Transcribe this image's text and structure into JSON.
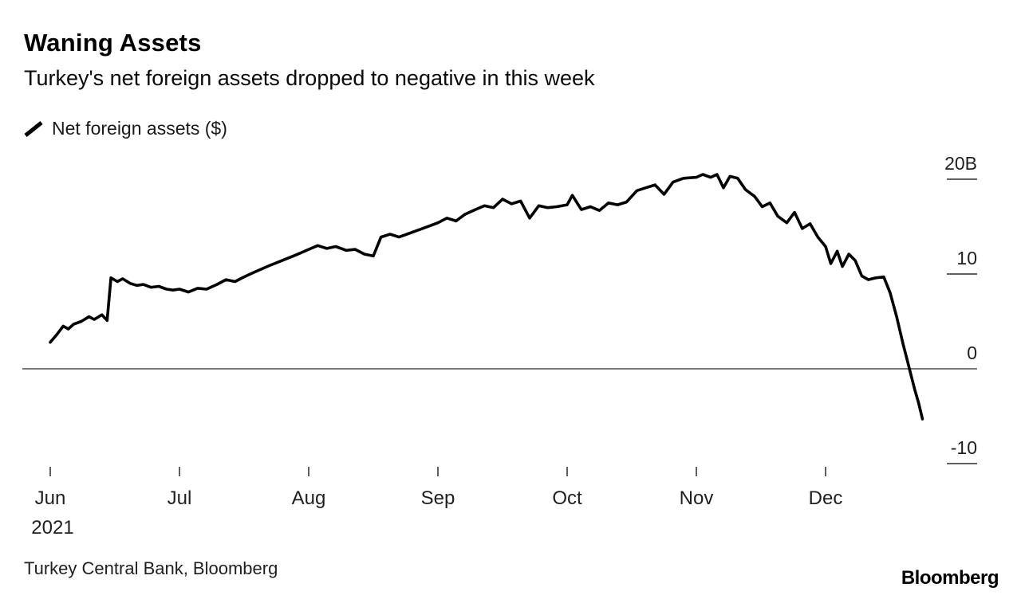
{
  "header": {
    "title": "Waning Assets",
    "subtitle": "Turkey's net foreign assets dropped to negative in this week"
  },
  "legend": {
    "label": "Net foreign assets ($)",
    "swatch_icon": "diagonal-line-swatch",
    "swatch_color": "#000000"
  },
  "chart_data": {
    "type": "line",
    "title": "Waning Assets",
    "subtitle": "Turkey's net foreign assets dropped to negative in this week",
    "x_unit": "months from Jun 2021",
    "y_unit": "billions USD",
    "ylim": [
      -12,
      22
    ],
    "grid": "zero-line-only",
    "legend_position": "top-left",
    "y_axis": {
      "side": "right",
      "ticks": [
        {
          "value": 20,
          "label": "20B"
        },
        {
          "value": 10,
          "label": "10"
        },
        {
          "value": 0,
          "label": "0"
        },
        {
          "value": -10,
          "label": "-10"
        }
      ]
    },
    "x_axis": {
      "ticks": [
        {
          "label": "Jun",
          "position": 0,
          "sub": "2021"
        },
        {
          "label": "Jul",
          "position": 1
        },
        {
          "label": "Aug",
          "position": 2
        },
        {
          "label": "Sep",
          "position": 3
        },
        {
          "label": "Oct",
          "position": 4
        },
        {
          "label": "Nov",
          "position": 5
        },
        {
          "label": "Dec",
          "position": 6
        }
      ]
    },
    "series": [
      {
        "name": "Net foreign assets ($)",
        "color": "#000000",
        "points": [
          [
            0.0,
            2.8
          ],
          [
            0.05,
            3.6
          ],
          [
            0.1,
            4.5
          ],
          [
            0.14,
            4.2
          ],
          [
            0.18,
            4.7
          ],
          [
            0.24,
            5.0
          ],
          [
            0.3,
            5.5
          ],
          [
            0.34,
            5.2
          ],
          [
            0.4,
            5.7
          ],
          [
            0.44,
            5.1
          ],
          [
            0.47,
            9.6
          ],
          [
            0.52,
            9.2
          ],
          [
            0.56,
            9.5
          ],
          [
            0.62,
            9.0
          ],
          [
            0.67,
            8.8
          ],
          [
            0.72,
            8.9
          ],
          [
            0.78,
            8.6
          ],
          [
            0.84,
            8.7
          ],
          [
            0.9,
            8.4
          ],
          [
            0.95,
            8.3
          ],
          [
            1.0,
            8.4
          ],
          [
            1.07,
            8.1
          ],
          [
            1.14,
            8.5
          ],
          [
            1.21,
            8.4
          ],
          [
            1.29,
            8.9
          ],
          [
            1.36,
            9.4
          ],
          [
            1.43,
            9.2
          ],
          [
            1.5,
            9.7
          ],
          [
            1.58,
            10.2
          ],
          [
            1.68,
            10.8
          ],
          [
            1.79,
            11.4
          ],
          [
            1.9,
            12.0
          ],
          [
            2.0,
            12.6
          ],
          [
            2.07,
            13.0
          ],
          [
            2.14,
            12.7
          ],
          [
            2.21,
            12.9
          ],
          [
            2.29,
            12.5
          ],
          [
            2.36,
            12.6
          ],
          [
            2.43,
            12.1
          ],
          [
            2.5,
            11.9
          ],
          [
            2.56,
            13.9
          ],
          [
            2.63,
            14.2
          ],
          [
            2.7,
            13.9
          ],
          [
            2.78,
            14.3
          ],
          [
            2.88,
            14.8
          ],
          [
            3.0,
            15.4
          ],
          [
            3.07,
            15.9
          ],
          [
            3.14,
            15.6
          ],
          [
            3.21,
            16.3
          ],
          [
            3.29,
            16.8
          ],
          [
            3.36,
            17.2
          ],
          [
            3.43,
            17.0
          ],
          [
            3.5,
            17.9
          ],
          [
            3.57,
            17.4
          ],
          [
            3.64,
            17.7
          ],
          [
            3.71,
            15.9
          ],
          [
            3.78,
            17.2
          ],
          [
            3.85,
            17.0
          ],
          [
            3.92,
            17.1
          ],
          [
            4.0,
            17.3
          ],
          [
            4.04,
            18.3
          ],
          [
            4.11,
            16.8
          ],
          [
            4.18,
            17.1
          ],
          [
            4.25,
            16.7
          ],
          [
            4.32,
            17.5
          ],
          [
            4.39,
            17.3
          ],
          [
            4.46,
            17.6
          ],
          [
            4.54,
            18.8
          ],
          [
            4.61,
            19.1
          ],
          [
            4.68,
            19.4
          ],
          [
            4.75,
            18.4
          ],
          [
            4.82,
            19.7
          ],
          [
            4.9,
            20.1
          ],
          [
            5.0,
            20.2
          ],
          [
            5.05,
            20.5
          ],
          [
            5.11,
            20.2
          ],
          [
            5.16,
            20.5
          ],
          [
            5.21,
            19.1
          ],
          [
            5.26,
            20.3
          ],
          [
            5.32,
            20.1
          ],
          [
            5.38,
            18.9
          ],
          [
            5.45,
            18.2
          ],
          [
            5.51,
            17.1
          ],
          [
            5.57,
            17.5
          ],
          [
            5.63,
            16.1
          ],
          [
            5.7,
            15.4
          ],
          [
            5.76,
            16.5
          ],
          [
            5.82,
            14.8
          ],
          [
            5.88,
            15.3
          ],
          [
            5.94,
            13.9
          ],
          [
            6.0,
            12.9
          ],
          [
            6.04,
            11.1
          ],
          [
            6.09,
            12.4
          ],
          [
            6.13,
            10.8
          ],
          [
            6.18,
            12.1
          ],
          [
            6.23,
            11.4
          ],
          [
            6.28,
            9.8
          ],
          [
            6.33,
            9.4
          ],
          [
            6.39,
            9.6
          ],
          [
            6.45,
            9.7
          ],
          [
            6.5,
            8.0
          ],
          [
            6.55,
            5.5
          ],
          [
            6.6,
            2.6
          ],
          [
            6.63,
            1.0
          ],
          [
            6.66,
            -0.6
          ],
          [
            6.69,
            -2.2
          ],
          [
            6.72,
            -3.6
          ],
          [
            6.75,
            -5.3
          ]
        ]
      }
    ]
  },
  "source": {
    "text": "Turkey Central Bank, Bloomberg"
  },
  "brand": {
    "text": "Bloomberg"
  },
  "colors": {
    "line": "#000000",
    "axis_line": "#2b2b2b",
    "tick_text": "#1f1f1f",
    "background": "#ffffff"
  }
}
